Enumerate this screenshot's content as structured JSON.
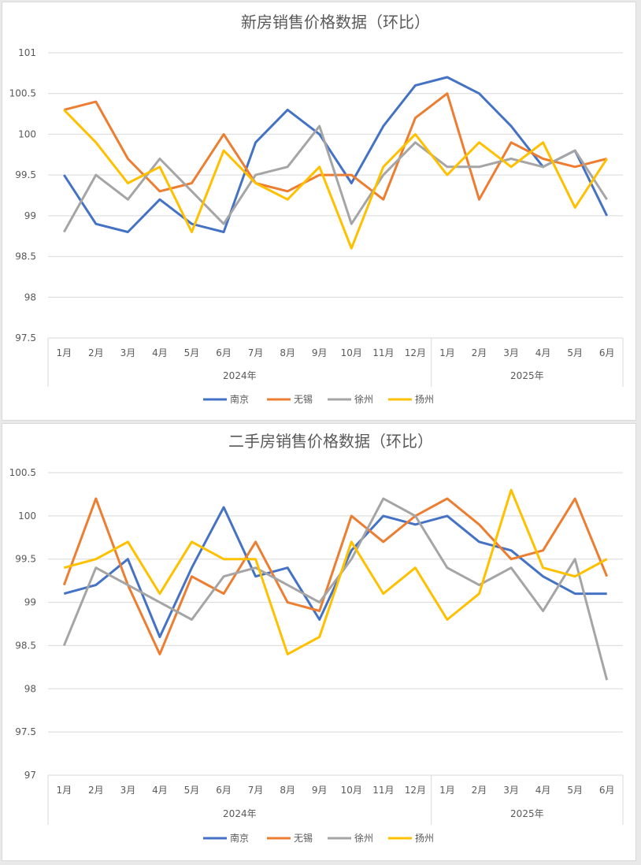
{
  "chart_data": [
    {
      "type": "line",
      "title": "新房销售价格数据（环比）",
      "categories": [
        "1月",
        "2月",
        "3月",
        "4月",
        "5月",
        "6月",
        "7月",
        "8月",
        "9月",
        "10月",
        "11月",
        "12月",
        "1月",
        "2月",
        "3月",
        "4月",
        "5月",
        "6月"
      ],
      "category_groups": [
        {
          "label": "2024年",
          "count": 12
        },
        {
          "label": "2025年",
          "count": 6
        }
      ],
      "ylim": [
        97.5,
        101
      ],
      "yticks": [
        "97.5",
        "98",
        "98.5",
        "99",
        "99.5",
        "100",
        "100.5",
        "101"
      ],
      "grid": true,
      "legend": "bottom",
      "series": [
        {
          "name": "南京",
          "color": "#4472c4",
          "values": [
            99.5,
            98.9,
            98.8,
            99.2,
            98.9,
            98.8,
            99.9,
            100.3,
            100.0,
            99.4,
            100.1,
            100.6,
            100.7,
            100.5,
            100.1,
            99.6,
            99.8,
            99.0
          ]
        },
        {
          "name": "无锡",
          "color": "#ed7d31",
          "values": [
            100.3,
            100.4,
            99.7,
            99.3,
            99.4,
            100.0,
            99.4,
            99.3,
            99.5,
            99.5,
            99.2,
            100.2,
            100.5,
            99.2,
            99.9,
            99.7,
            99.6,
            99.7
          ]
        },
        {
          "name": "徐州",
          "color": "#a5a5a5",
          "values": [
            98.8,
            99.5,
            99.2,
            99.7,
            99.3,
            98.9,
            99.5,
            99.6,
            100.1,
            98.9,
            99.5,
            99.9,
            99.6,
            99.6,
            99.7,
            99.6,
            99.8,
            99.2
          ]
        },
        {
          "name": "扬州",
          "color": "#ffc000",
          "values": [
            100.3,
            99.9,
            99.4,
            99.6,
            98.8,
            99.8,
            99.4,
            99.2,
            99.6,
            98.6,
            99.6,
            100.0,
            99.5,
            99.9,
            99.6,
            99.9,
            99.1,
            99.7
          ]
        }
      ]
    },
    {
      "type": "line",
      "title": "二手房销售价格数据（环比）",
      "categories": [
        "1月",
        "2月",
        "3月",
        "4月",
        "5月",
        "6月",
        "7月",
        "8月",
        "9月",
        "10月",
        "11月",
        "12月",
        "1月",
        "2月",
        "3月",
        "4月",
        "5月",
        "6月"
      ],
      "category_groups": [
        {
          "label": "2024年",
          "count": 12
        },
        {
          "label": "2025年",
          "count": 6
        }
      ],
      "ylim": [
        97,
        100.5
      ],
      "yticks": [
        "97",
        "97.5",
        "98",
        "98.5",
        "99",
        "99.5",
        "100",
        "100.5"
      ],
      "grid": true,
      "legend": "bottom",
      "series": [
        {
          "name": "南京",
          "color": "#4472c4",
          "values": [
            99.1,
            99.2,
            99.5,
            98.6,
            99.4,
            100.1,
            99.3,
            99.4,
            98.8,
            99.6,
            100.0,
            99.9,
            100.0,
            99.7,
            99.6,
            99.3,
            99.1,
            99.1
          ]
        },
        {
          "name": "无锡",
          "color": "#ed7d31",
          "values": [
            99.2,
            100.2,
            99.2,
            98.4,
            99.3,
            99.1,
            99.7,
            99.0,
            98.9,
            100.0,
            99.7,
            100.0,
            100.2,
            99.9,
            99.5,
            99.6,
            100.2,
            99.3
          ]
        },
        {
          "name": "徐州",
          "color": "#a5a5a5",
          "values": [
            98.5,
            99.4,
            99.2,
            99.0,
            98.8,
            99.3,
            99.4,
            99.2,
            99.0,
            99.5,
            100.2,
            100.0,
            99.4,
            99.2,
            99.4,
            98.9,
            99.5,
            98.1
          ]
        },
        {
          "name": "扬州",
          "color": "#ffc000",
          "values": [
            99.4,
            99.5,
            99.7,
            99.1,
            99.7,
            99.5,
            99.5,
            98.4,
            98.6,
            99.7,
            99.1,
            99.4,
            98.8,
            99.1,
            100.3,
            99.4,
            99.3,
            99.5
          ]
        }
      ]
    }
  ]
}
